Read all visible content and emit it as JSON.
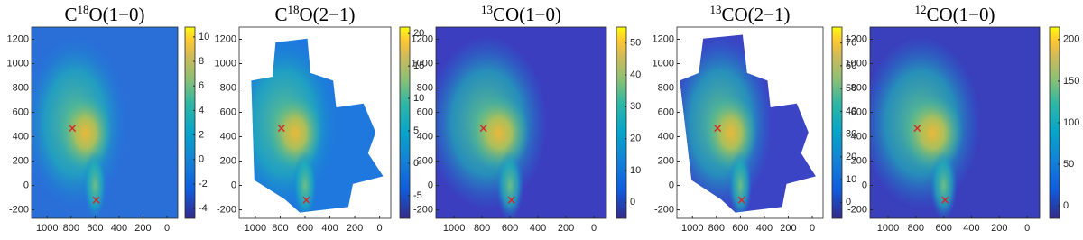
{
  "chart_data": [
    {
      "type": "heatmap",
      "title": [
        {
          "text": "C"
        },
        {
          "sup": "18"
        },
        {
          "text": "O(1−0)"
        }
      ],
      "xlim": [
        1130,
        -90
      ],
      "xticks": [
        1000,
        800,
        600,
        400,
        200,
        0
      ],
      "ylim": [
        -270,
        1300
      ],
      "yticks": [
        -200,
        0,
        200,
        400,
        600,
        800,
        1000,
        1200
      ],
      "clim": [
        -4.8,
        10.8
      ],
      "cticks": [
        -4,
        -2,
        0,
        2,
        4,
        6,
        8,
        10
      ],
      "markers": {
        "x": [
          790,
          590
        ],
        "y": [
          470,
          -120
        ],
        "color": "#d62728"
      }
    },
    {
      "type": "heatmap",
      "title": [
        {
          "text": "C"
        },
        {
          "sup": "18"
        },
        {
          "text": "O(2−1)"
        }
      ],
      "xlim": [
        1130,
        -90
      ],
      "xticks": [
        1000,
        800,
        600,
        400,
        200,
        0
      ],
      "ylim": [
        -270,
        1300
      ],
      "yticks": [
        -200,
        0,
        200,
        400,
        600,
        800,
        1000,
        1200
      ],
      "clim": [
        -8.5,
        21
      ],
      "cticks": [
        -5,
        0,
        5,
        10,
        15,
        20
      ],
      "markers": {
        "x": [
          790,
          590
        ],
        "y": [
          470,
          -120
        ],
        "color": "#d62728"
      }
    },
    {
      "type": "heatmap",
      "title": [
        {
          "sup": "13"
        },
        {
          "text": "CO(1−0)"
        }
      ],
      "xlim": [
        1130,
        -90
      ],
      "xticks": [
        1000,
        800,
        600,
        400,
        200,
        0
      ],
      "ylim": [
        -270,
        1300
      ],
      "yticks": [
        -200,
        0,
        200,
        400,
        600,
        800,
        1000,
        1200
      ],
      "clim": [
        -5,
        55
      ],
      "cticks": [
        0,
        10,
        20,
        30,
        40,
        50
      ],
      "markers": {
        "x": [
          790,
          590
        ],
        "y": [
          470,
          -120
        ],
        "color": "#d62728"
      }
    },
    {
      "type": "heatmap",
      "title": [
        {
          "sup": "13"
        },
        {
          "text": "CO(2−1)"
        }
      ],
      "xlim": [
        1130,
        -90
      ],
      "xticks": [
        1000,
        800,
        600,
        400,
        200,
        0
      ],
      "ylim": [
        -270,
        1300
      ],
      "yticks": [
        -200,
        0,
        200,
        400,
        600,
        800,
        1000,
        1200
      ],
      "clim": [
        -7,
        77
      ],
      "cticks": [
        0,
        10,
        20,
        30,
        40,
        50,
        60,
        70
      ],
      "markers": {
        "x": [
          790,
          590
        ],
        "y": [
          470,
          -120
        ],
        "color": "#d62728"
      }
    },
    {
      "type": "heatmap",
      "title": [
        {
          "sup": "12"
        },
        {
          "text": "CO(1−0)"
        }
      ],
      "xlim": [
        1130,
        -90
      ],
      "xticks": [
        1000,
        800,
        600,
        400,
        200,
        0
      ],
      "ylim": [
        -270,
        1300
      ],
      "yticks": [
        -200,
        0,
        200,
        400,
        600,
        800,
        1000,
        1200
      ],
      "clim": [
        -15,
        215
      ],
      "cticks": [
        0,
        50,
        100,
        150,
        200
      ],
      "markers": {
        "x": [
          790,
          590
        ],
        "y": [
          470,
          -120
        ],
        "color": "#d62728"
      }
    }
  ]
}
